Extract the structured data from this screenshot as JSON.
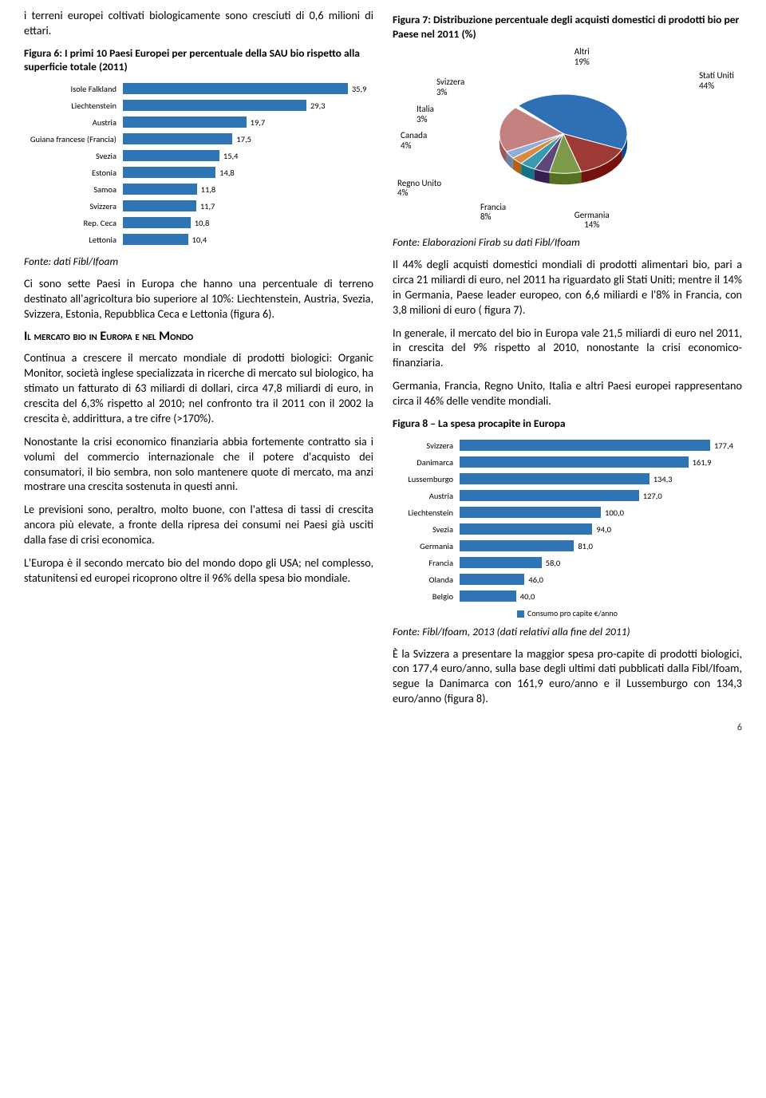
{
  "left_intro": "i terreni europei coltivati biologicamente sono cresciuti di 0,6 milioni di ettari.",
  "fig6_title": "Figura 6: I primi 10 Paesi Europei per percentuale della SAU bio rispetto alla superficie totale (2011)",
  "fig6": {
    "type": "bar",
    "categories": [
      "Isole Falkland",
      "Liechtenstein",
      "Austria",
      "Guiana francese (Francia)",
      "Svezia",
      "Estonia",
      "Samoa",
      "Svizzera",
      "Rep. Ceca",
      "Lettonia"
    ],
    "values": [
      35.9,
      29.3,
      19.7,
      17.5,
      15.4,
      14.8,
      11.8,
      11.7,
      10.8,
      10.4
    ],
    "value_labels": [
      "35,9",
      "29,3",
      "19,7",
      "17,5",
      "15,4",
      "14,8",
      "11,8",
      "11,7",
      "10,8",
      "10,4"
    ],
    "bar_color": "#2f75b5",
    "max": 40
  },
  "fig6_source": "Fonte: dati Fibl/Ifoam",
  "left_p2": "Ci sono sette Paesi in Europa che hanno una percentuale di terreno destinato all'agricoltura bio superiore al 10%: Liechtenstein, Austria, Svezia, Svizzera, Estonia, Repubblica Ceca e Lettonia (figura 6).",
  "section_heading": "Il mercato bio in Europa e nel Mondo",
  "left_p3": "Continua a crescere il mercato mondiale di prodotti biologici: Organic Monitor, società inglese specializzata in ricerche di mercato sul biologico, ha stimato un fatturato di 63 miliardi di dollari, circa 47,8 miliardi di euro, in crescita del 6,3% rispetto al 2010; nel confronto tra il 2011 con il 2002 la crescita è, addirittura, a tre cifre (>170%).",
  "left_p4": "Nonostante la crisi economico finanziaria abbia fortemente contratto sia i volumi del commercio internazionale che il potere d'acquisto dei consumatori, il bio sembra, non solo mantenere quote di mercato, ma anzi mostrare una crescita sostenuta in questi anni.",
  "left_p5": "Le previsioni sono, peraltro, molto buone, con l'attesa di tassi di crescita ancora più elevate, a fronte della ripresa dei consumi nei Paesi già usciti dalla fase di crisi economica.",
  "left_p6": "L'Europa è il secondo mercato bio del mondo dopo gli USA;  nel complesso, statunitensi ed europei ricoprono oltre il 96% della spesa bio mondiale.",
  "fig7_title": "Figura 7: Distribuzione percentuale degli acquisti domestici di prodotti bio per Paese nel 2011 (%)",
  "fig7": {
    "type": "pie",
    "slices": [
      {
        "label": "Stati Uniti",
        "pct": 44,
        "color": "#2e6fb5",
        "lbl": "Stati Uniti\n44%"
      },
      {
        "label": "Germania",
        "pct": 14,
        "color": "#9e3a35",
        "lbl": "Germania\n14%"
      },
      {
        "label": "Francia",
        "pct": 8,
        "color": "#7c9a4a",
        "lbl": "Francia\n8%"
      },
      {
        "label": "Regno Unito",
        "pct": 4,
        "color": "#5f4879",
        "lbl": "Regno Unito\n4%"
      },
      {
        "label": "Canada",
        "pct": 4,
        "color": "#3a9ab0",
        "lbl": "Canada\n4%"
      },
      {
        "label": "Italia",
        "pct": 3,
        "color": "#d98a3e",
        "lbl": "Italia\n3%"
      },
      {
        "label": "Svizzera",
        "pct": 3,
        "color": "#8faed6",
        "lbl": "Svizzera\n3%"
      },
      {
        "label": "Altri",
        "pct": 19,
        "color": "#c58080",
        "lbl": "Altri\n19%"
      }
    ]
  },
  "fig7_source": "Fonte: Elaborazioni Firab su dati Fibl/Ifoam",
  "right_p1": "Il 44% degli acquisti domestici mondiali di prodotti alimentari bio, pari a circa 21 miliardi di euro, nel 2011 ha riguardato gli Stati Uniti; mentre il 14% in  Germania, Paese leader europeo, con 6,6 miliardi e l'8% in Francia, con 3,8 milioni di euro ( figura 7).",
  "right_p2": "In generale, il mercato del bio in Europa vale 21,5 miliardi di euro nel 2011, in crescita del 9% rispetto al 2010, nonostante la crisi economico-finanziaria.",
  "right_p3": "Germania, Francia, Regno Unito, Italia e altri Paesi europei rappresentano circa il 46% delle vendite mondiali.",
  "fig8_title": "Figura 8 – La spesa procapite in Europa",
  "fig8": {
    "type": "bar",
    "categories": [
      "Svizzera",
      "Danimarca",
      "Lussemburgo",
      "Austria",
      "Liechtenstein",
      "Svezia",
      "Germania",
      "Francia",
      "Olanda",
      "Belgio"
    ],
    "values": [
      177.4,
      161.9,
      134.3,
      127.0,
      100.0,
      94.0,
      81.0,
      58.0,
      46.0,
      40.0
    ],
    "value_labels": [
      "177,4",
      "161,9",
      "134,3",
      "127,0",
      "100,0",
      "94,0",
      "81,0",
      "58,0",
      "46,0",
      "40,0"
    ],
    "bar_color": "#2f75b5",
    "max": 200,
    "legend": "Consumo pro capite €/anno",
    "legend_color": "#2f75b5"
  },
  "fig8_source": "Fonte: Fibl/Ifoam, 2013 (dati relativi alla fine del 2011)",
  "right_p4": "È la Svizzera a presentare la maggior spesa pro-capite di prodotti biologici, con 177,4 euro/anno, sulla base degli ultimi dati pubblicati dalla Fibl/Ifoam, segue la Danimarca con 161,9 euro/anno e il Lussemburgo con 134,3 euro/anno (figura 8).",
  "page_number": "6"
}
